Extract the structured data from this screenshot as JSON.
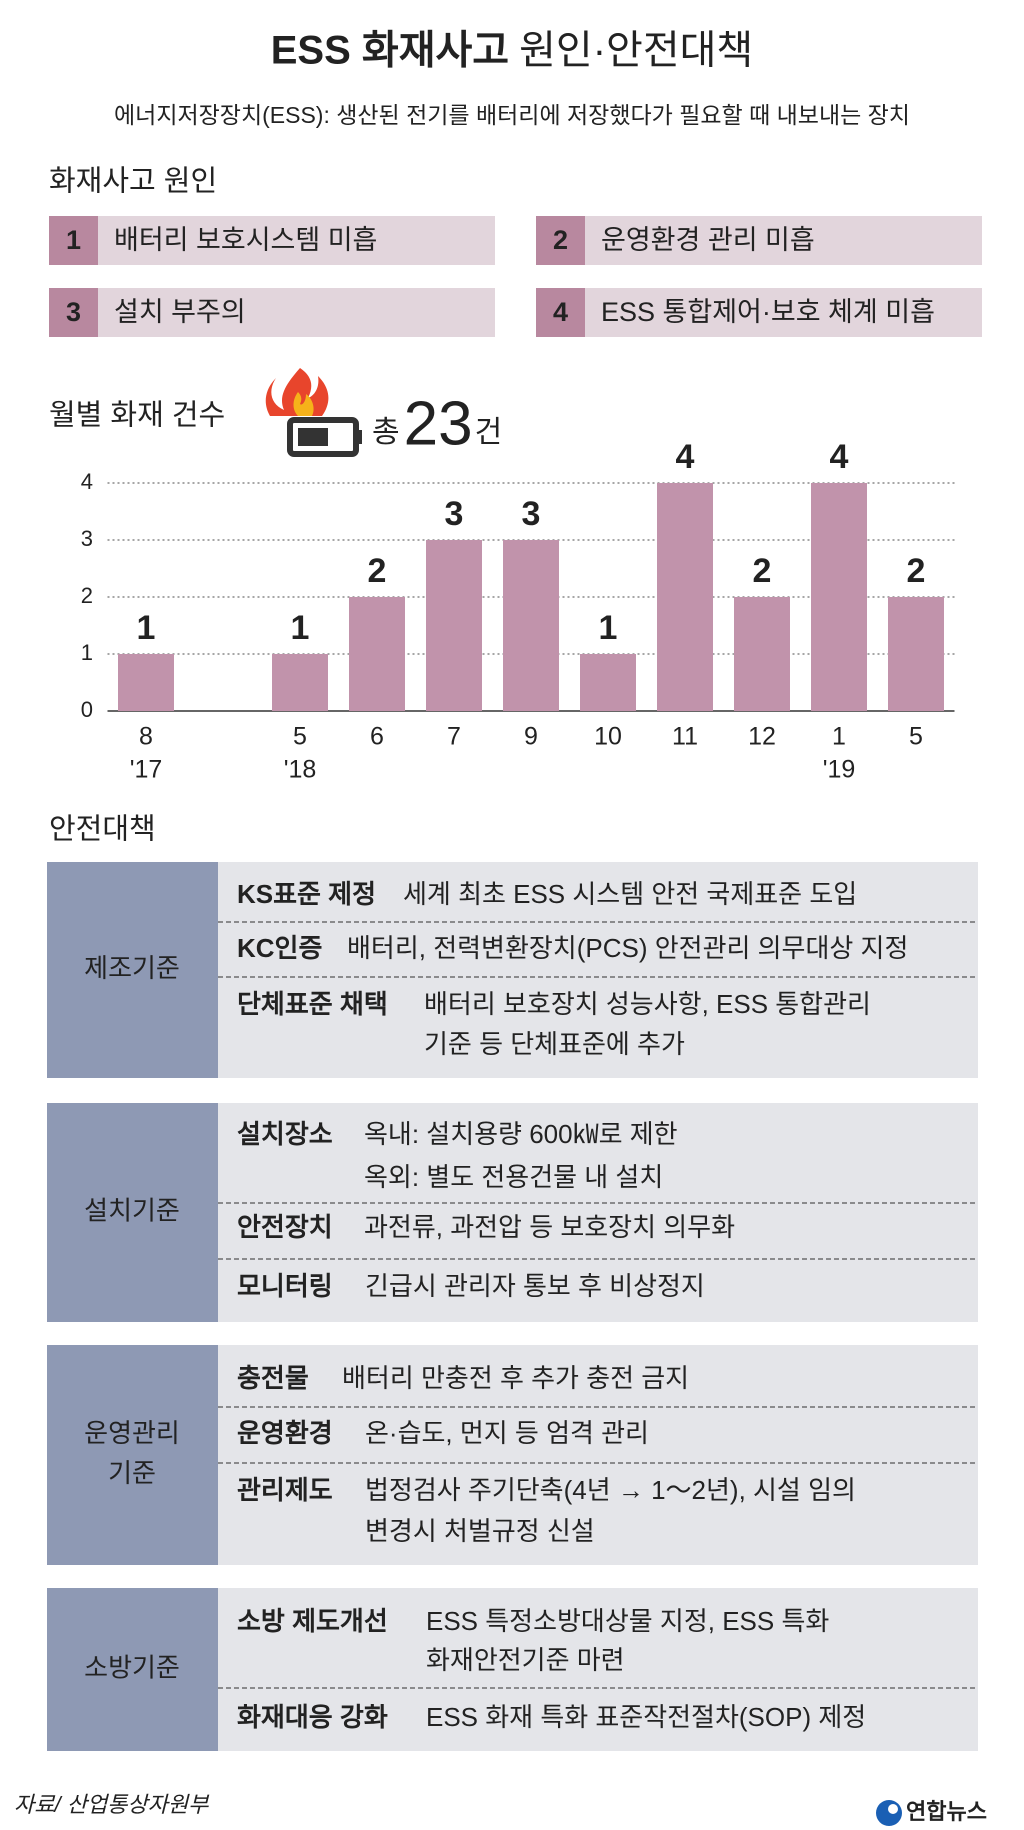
{
  "header": {
    "title_bold": "ESS 화재사고",
    "title_rest": "원인·안전대책",
    "subtitle": "에너지저장장치(ESS): 생산된 전기를 배터리에 저장했다가 필요할 때 내보내는 장치"
  },
  "causes": {
    "heading": "화재사고 원인",
    "items": [
      {
        "number": "1",
        "text": "배터리 보호시스템 미흡"
      },
      {
        "number": "2",
        "text": "운영환경 관리 미흡"
      },
      {
        "number": "3",
        "text": "설치 부주의"
      },
      {
        "number": "4",
        "text": "ESS 통합제어·보호 체계 미흡"
      }
    ]
  },
  "chart_data": {
    "type": "bar",
    "title": "월별 화재 건수",
    "total": {
      "prefix": "총",
      "value": 23,
      "suffix": "건"
    },
    "categories": [
      "8",
      null,
      "5",
      "6",
      "7",
      "9",
      "10",
      "11",
      "12",
      "1",
      "5"
    ],
    "year_labels": [
      "'17",
      null,
      "'18",
      null,
      null,
      null,
      null,
      null,
      null,
      "'19",
      null
    ],
    "values": [
      1,
      null,
      1,
      2,
      3,
      3,
      1,
      4,
      2,
      4,
      2
    ],
    "color": "#c193ab",
    "ylim": [
      0,
      4
    ],
    "yticks": [
      0,
      1,
      2,
      3,
      4
    ],
    "grid": true
  },
  "measures": {
    "heading": "안전대책",
    "sections": [
      {
        "category": [
          "제조기준"
        ],
        "rows": [
          {
            "label": "KS표준 제정",
            "lines": [
              "세계 최초 ESS 시스템 안전 국제표준 도입"
            ]
          },
          {
            "label": "KC인증",
            "lines": [
              "배터리, 전력변환장치(PCS) 안전관리 의무대상 지정"
            ]
          },
          {
            "label": "단체표준 채택",
            "lines": [
              "배터리 보호장치 성능사항, ESS 통합관리",
              "기준 등 단체표준에 추가"
            ]
          }
        ]
      },
      {
        "category": [
          "설치기준"
        ],
        "rows": [
          {
            "label": "설치장소",
            "lines": [
              "옥내: 설치용량 600㎾로 제한",
              "옥외: 별도 전용건물 내 설치"
            ]
          },
          {
            "label": "안전장치",
            "lines": [
              "과전류, 과전압 등 보호장치 의무화"
            ]
          },
          {
            "label": "모니터링",
            "lines": [
              "긴급시 관리자 통보 후 비상정지"
            ]
          }
        ]
      },
      {
        "category": [
          "운영관리",
          "기준"
        ],
        "rows": [
          {
            "label": "충전물",
            "lines": [
              "배터리 만충전 후 추가 충전 금지"
            ]
          },
          {
            "label": "운영환경",
            "lines": [
              "온·습도, 먼지 등 엄격 관리"
            ]
          },
          {
            "label": "관리제도",
            "lines": [
              "법정검사 주기단축(4년 → 1～2년), 시설 임의",
              "변경시 처벌규정 신설"
            ]
          }
        ]
      },
      {
        "category": [
          "소방기준"
        ],
        "rows": [
          {
            "label": "소방 제도개선",
            "lines": [
              "ESS 특정소방대상물 지정, ESS 특화",
              "화재안전기준 마련"
            ]
          },
          {
            "label": "화재대응 강화",
            "lines": [
              "ESS 화재 특화 표준작전절차(SOP) 제정"
            ]
          }
        ]
      }
    ]
  },
  "footer": {
    "source": "자료/ 산업통상자원부",
    "logo": "연합뉴스"
  }
}
